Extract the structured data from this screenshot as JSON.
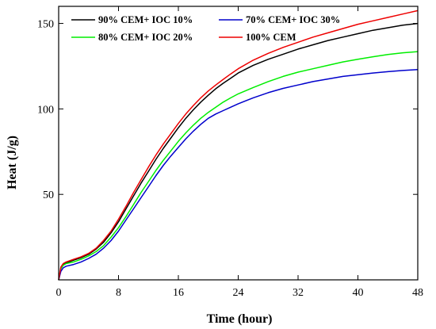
{
  "chart_data": {
    "type": "line",
    "title": "",
    "xlabel": "Time (hour)",
    "ylabel": "Heat (J/g)",
    "xlim": [
      0,
      48
    ],
    "ylim": [
      0,
      160
    ],
    "x_ticks": [
      0,
      8,
      16,
      24,
      32,
      40,
      48
    ],
    "y_ticks": [
      50,
      100,
      150
    ],
    "grid": false,
    "legend_position": "top",
    "x": [
      0,
      0.3,
      0.6,
      1,
      2,
      3,
      4,
      5,
      6,
      7,
      8,
      9,
      10,
      11,
      12,
      13,
      14,
      15,
      16,
      17,
      18,
      19,
      20,
      21,
      22,
      23,
      24,
      26,
      28,
      30,
      32,
      34,
      36,
      38,
      40,
      42,
      44,
      46,
      48
    ],
    "series": [
      {
        "name": "90% CEM+ IOC 10%",
        "color": "#000000",
        "values": [
          0,
          7,
          9,
          10,
          11.5,
          13,
          15,
          18,
          22,
          27.5,
          34,
          41.5,
          49,
          56.5,
          63.5,
          70.5,
          77,
          83,
          89,
          94.5,
          99.5,
          104,
          108,
          111.8,
          115,
          118,
          121,
          125.5,
          129,
          132,
          135,
          137.5,
          140,
          142,
          144,
          146,
          147.5,
          149,
          150
        ]
      },
      {
        "name": "80% CEM+ IOC 20%",
        "color": "#00ee00",
        "values": [
          0,
          6.5,
          8.5,
          9.5,
          10.5,
          12,
          14,
          16.5,
          20,
          25,
          30.5,
          37,
          44,
          51,
          57.5,
          64,
          70,
          75.5,
          81,
          86,
          90.5,
          94.5,
          98,
          101,
          104,
          106.5,
          108.8,
          112.5,
          116,
          119,
          121.5,
          123.5,
          125.5,
          127.5,
          129,
          130.5,
          131.8,
          132.8,
          133.5
        ]
      },
      {
        "name": "70% CEM+ IOC 30%",
        "color": "#0000cc",
        "values": [
          0,
          5,
          7,
          8,
          9,
          10.5,
          12.5,
          15,
          18.5,
          23,
          28.5,
          35,
          41.5,
          48,
          54.5,
          61,
          67,
          72.5,
          77.5,
          82.5,
          87,
          91,
          94.5,
          97,
          99,
          101,
          103,
          106.5,
          109.5,
          112,
          114,
          116,
          117.5,
          119,
          120,
          121,
          121.8,
          122.5,
          123
        ]
      },
      {
        "name": "100% CEM",
        "color": "#ee0000",
        "values": [
          0,
          7.5,
          9.5,
          10.5,
          12,
          13.5,
          15.5,
          18.5,
          23,
          28.5,
          35.5,
          43,
          51,
          58.5,
          66,
          73,
          79.5,
          85.5,
          91.5,
          97,
          102,
          106.5,
          110.5,
          114,
          117.3,
          120.5,
          123.5,
          128.5,
          132.5,
          136,
          139,
          142,
          144.5,
          147,
          149.5,
          151.5,
          153.5,
          155.5,
          157.5
        ]
      }
    ]
  }
}
